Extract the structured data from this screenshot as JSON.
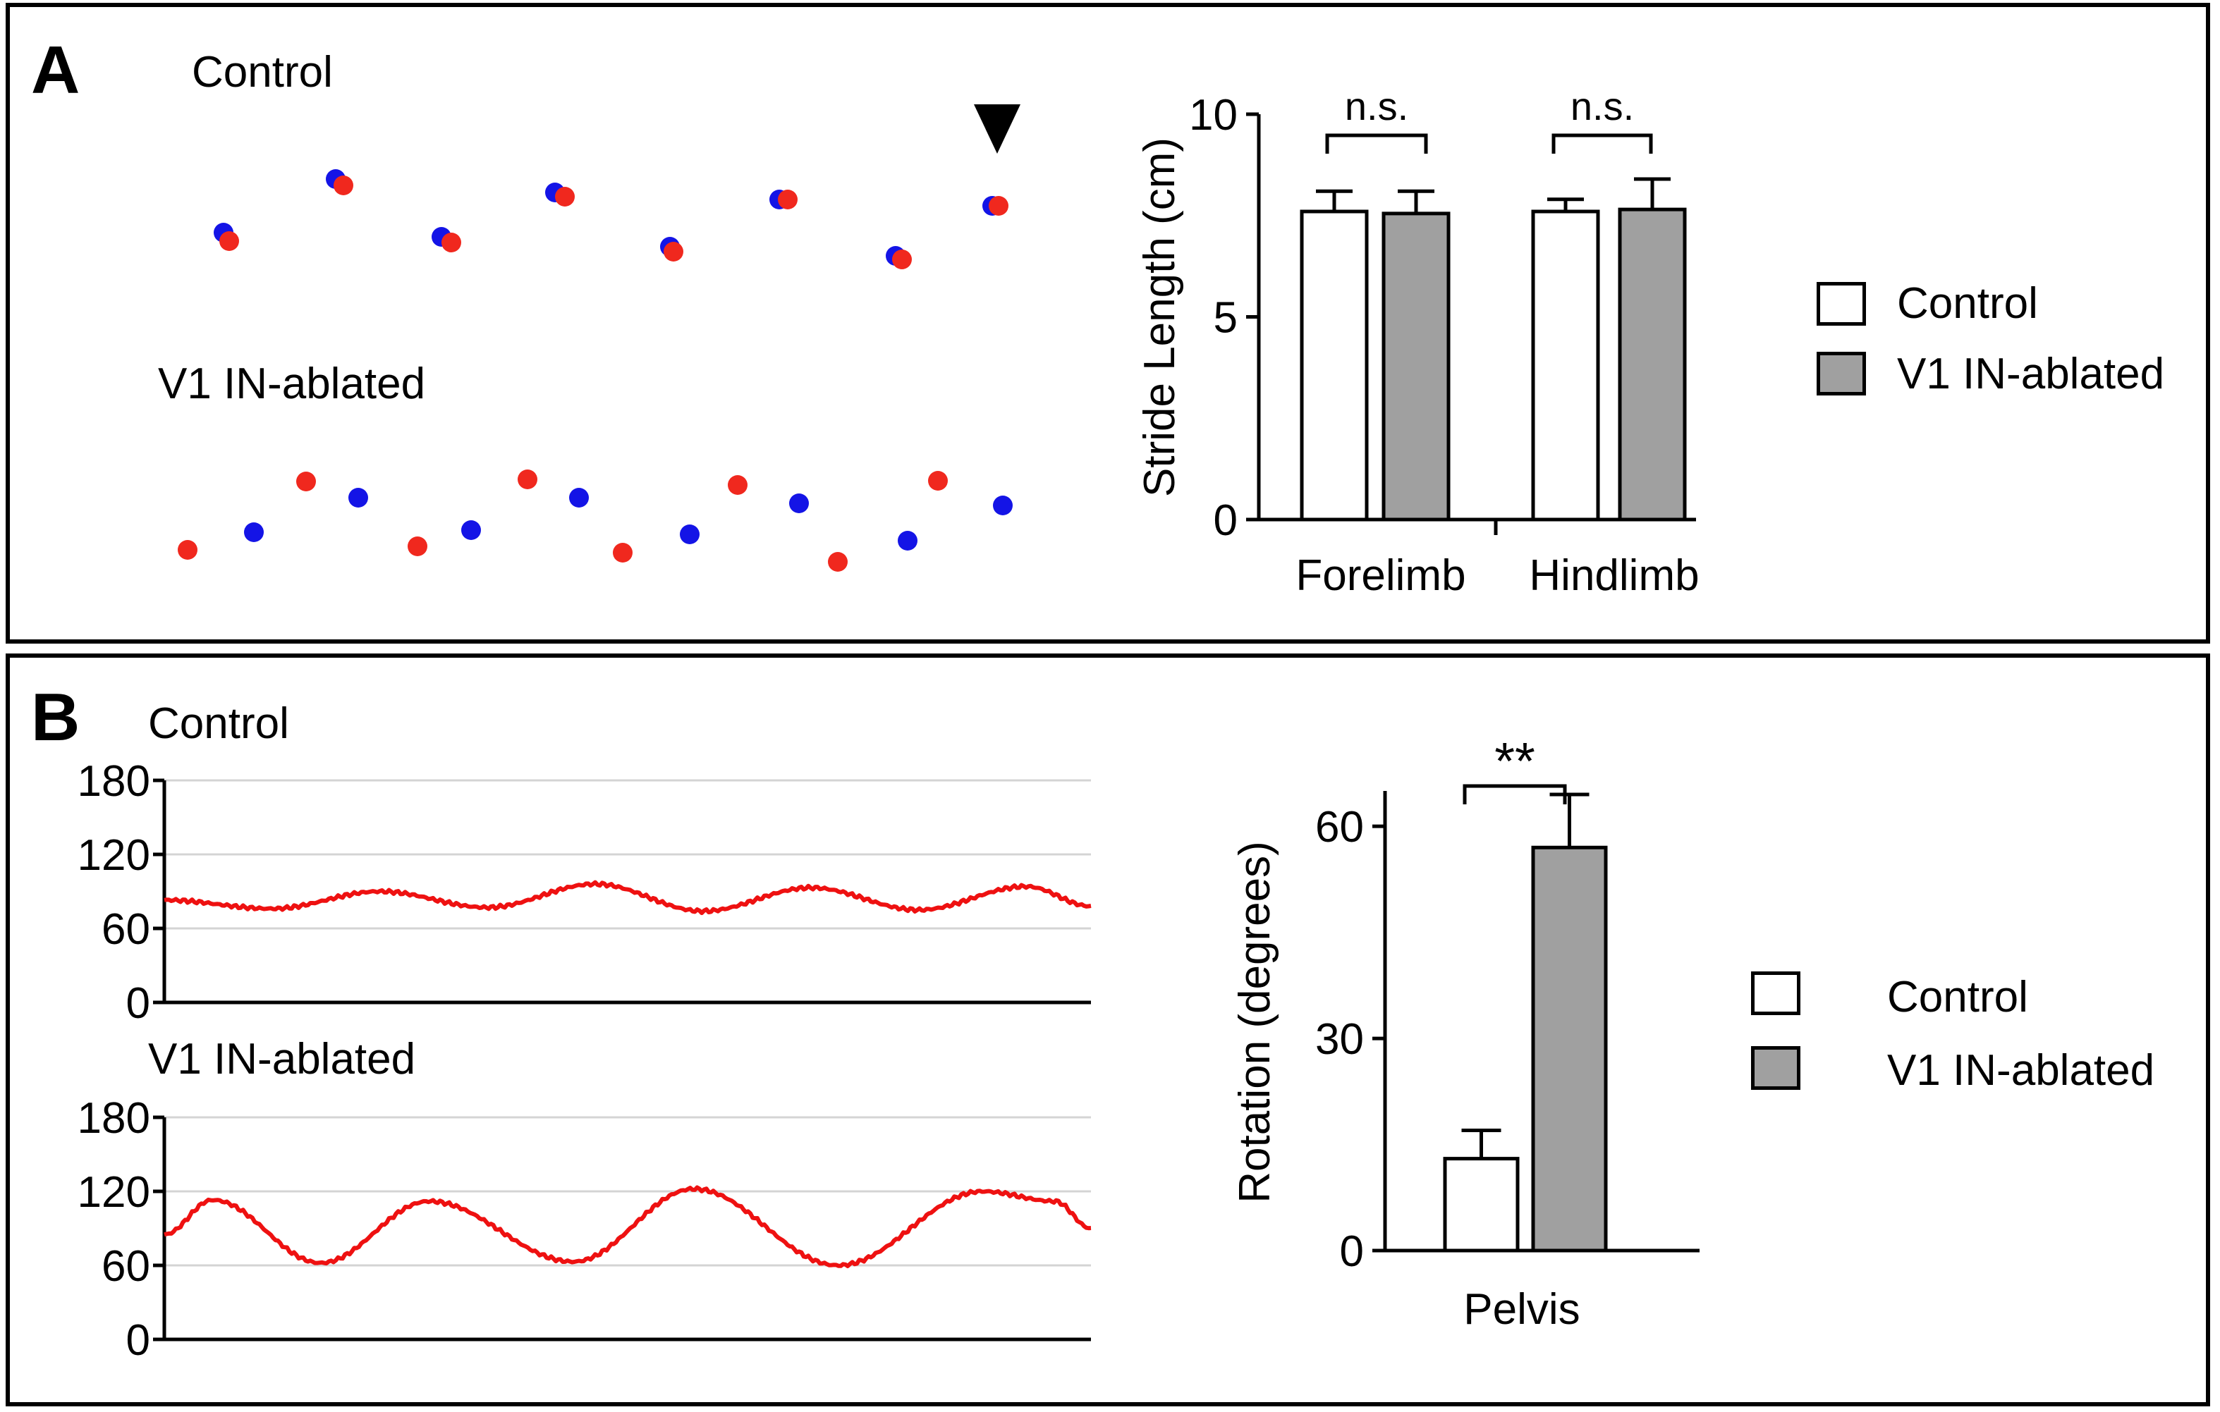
{
  "panels": {
    "a": {
      "letter": "A",
      "footprints": {
        "control_label": "Control",
        "ablated_label": "V1 IN-ablated",
        "colors": {
          "blue": "#1414e6",
          "red": "#f0281e"
        }
      },
      "legend": {
        "control": "Control",
        "ablated": "V1 IN-ablated"
      }
    },
    "b": {
      "letter": "B",
      "trace_control_label": "Control",
      "trace_ablated_label": "V1 IN-ablated",
      "legend": {
        "control": "Control",
        "ablated": "V1 IN-ablated"
      }
    }
  },
  "chart_data": [
    {
      "id": "stride",
      "type": "bar",
      "categories": [
        "Forelimb",
        "Hindlimb"
      ],
      "series": [
        {
          "name": "Control",
          "color": "#ffffff",
          "values": [
            7.6,
            7.6
          ],
          "errors": [
            0.5,
            0.3
          ]
        },
        {
          "name": "V1 IN-ablated",
          "color": "#a0a0a0",
          "values": [
            7.55,
            7.65
          ],
          "errors": [
            0.55,
            0.75
          ]
        }
      ],
      "ylabel": "Stride Length (cm)",
      "ylim": [
        0,
        10
      ],
      "yticks": [
        0,
        5,
        10
      ],
      "annotations": [
        "n.s.",
        "n.s."
      ]
    },
    {
      "id": "trace_control",
      "type": "line",
      "title": "Control",
      "ylim": [
        0,
        180
      ],
      "yticks": [
        0,
        60,
        120,
        180
      ],
      "grid": true,
      "color": "#ee1111",
      "keypoints": [
        [
          0,
          83
        ],
        [
          5,
          76
        ],
        [
          10,
          90
        ],
        [
          15,
          77
        ],
        [
          20,
          96
        ],
        [
          25,
          74
        ],
        [
          30,
          93
        ],
        [
          35,
          75
        ],
        [
          40,
          94
        ],
        [
          43,
          78
        ]
      ]
    },
    {
      "id": "trace_ablated",
      "type": "line",
      "title": "V1 IN-ablated",
      "ylim": [
        0,
        180
      ],
      "yticks": [
        0,
        60,
        120,
        180
      ],
      "grid": true,
      "color": "#ee1111",
      "keypoints": [
        [
          0,
          85
        ],
        [
          2,
          113
        ],
        [
          6.5,
          62
        ],
        [
          11,
          112
        ],
        [
          17,
          63
        ],
        [
          22,
          122
        ],
        [
          28,
          60
        ],
        [
          34,
          120
        ],
        [
          37,
          112
        ],
        [
          38.5,
          90
        ]
      ]
    },
    {
      "id": "rotation",
      "type": "bar",
      "categories": [
        "Pelvis"
      ],
      "series": [
        {
          "name": "Control",
          "color": "#ffffff",
          "values": [
            13
          ],
          "errors": [
            4
          ]
        },
        {
          "name": "V1 IN-ablated",
          "color": "#a0a0a0",
          "values": [
            57
          ],
          "errors": [
            7.5
          ]
        }
      ],
      "ylabel": "Rotation (degrees)",
      "ylim": [
        0,
        65
      ],
      "yticks": [
        0,
        30,
        60
      ],
      "annotations": [
        "**"
      ]
    }
  ]
}
